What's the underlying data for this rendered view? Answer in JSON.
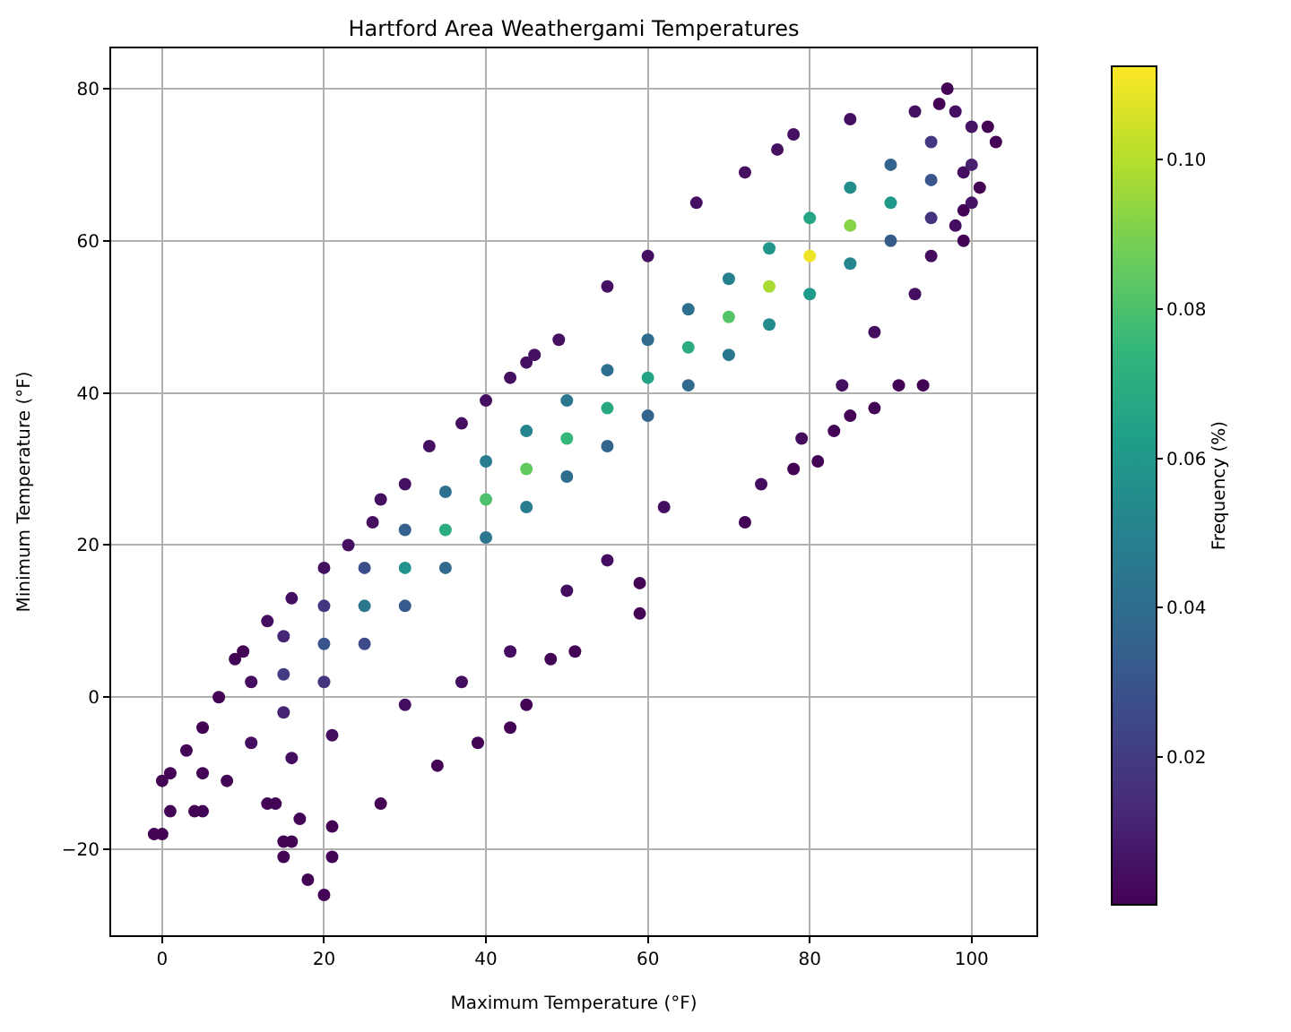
{
  "chart_data": {
    "type": "scatter",
    "title": "Hartford Area Weathergami Temperatures",
    "xlabel": "Maximum Temperature (°F)",
    "ylabel": "Minimum Temperature (°F)",
    "clabel": "Frequency (%)",
    "x": [
      -1,
      0,
      0,
      1,
      1,
      4,
      5,
      3,
      5,
      5,
      7,
      9,
      10,
      8,
      13,
      14,
      15,
      16,
      15,
      17,
      18,
      20,
      21,
      21,
      27,
      34,
      39,
      43,
      45,
      48,
      51,
      59,
      59,
      72,
      78,
      81,
      83,
      85,
      88,
      91,
      94,
      99,
      99,
      101,
      102,
      103,
      97,
      96,
      99,
      98,
      95,
      93,
      88,
      84,
      79,
      74,
      62,
      55,
      50,
      43,
      37,
      30,
      21,
      16,
      11,
      11,
      13,
      16,
      20,
      23,
      26,
      27,
      30,
      33,
      37,
      40,
      43,
      45,
      46,
      49,
      55,
      60,
      66,
      72,
      76,
      78,
      85,
      93,
      98,
      15,
      15,
      15,
      20,
      20,
      20,
      25,
      25,
      25,
      30,
      30,
      30,
      35,
      35,
      35,
      40,
      40,
      40,
      45,
      45,
      45,
      50,
      50,
      50,
      55,
      55,
      55,
      60,
      60,
      60,
      65,
      65,
      65,
      70,
      70,
      70,
      75,
      75,
      75,
      80,
      80,
      80,
      85,
      85,
      85,
      90,
      90,
      90,
      95,
      95,
      95,
      100,
      100,
      100
    ],
    "values": [
      -18,
      -18,
      -11,
      -10,
      -15,
      -15,
      -15,
      -7,
      -4,
      -10,
      0,
      5,
      6,
      -11,
      -14,
      -14,
      -19,
      -19,
      -21,
      -16,
      -24,
      -26,
      -17,
      -21,
      -14,
      -9,
      -6,
      -4,
      -1,
      5,
      6,
      11,
      15,
      23,
      30,
      31,
      35,
      37,
      38,
      41,
      41,
      60,
      64,
      67,
      75,
      73,
      80,
      78,
      69,
      62,
      58,
      53,
      48,
      41,
      34,
      28,
      25,
      18,
      14,
      6,
      2,
      -1,
      -5,
      -8,
      -6,
      2,
      10,
      13,
      17,
      20,
      23,
      26,
      28,
      33,
      36,
      39,
      42,
      44,
      45,
      47,
      54,
      58,
      65,
      69,
      72,
      74,
      76,
      77,
      77,
      3,
      8,
      -2,
      7,
      12,
      2,
      12,
      17,
      7,
      17,
      22,
      12,
      22,
      27,
      17,
      26,
      31,
      21,
      30,
      35,
      25,
      34,
      39,
      29,
      38,
      43,
      33,
      42,
      47,
      37,
      46,
      51,
      41,
      50,
      55,
      45,
      54,
      59,
      49,
      58,
      63,
      53,
      62,
      67,
      57,
      65,
      70,
      60,
      68,
      73,
      63,
      70,
      75,
      65
    ],
    "cvalues": [
      0.001,
      0.001,
      0.001,
      0.001,
      0.001,
      0.001,
      0.001,
      0.001,
      0.001,
      0.001,
      0.001,
      0.001,
      0.001,
      0.001,
      0.001,
      0.001,
      0.001,
      0.001,
      0.001,
      0.001,
      0.001,
      0.001,
      0.001,
      0.001,
      0.001,
      0.001,
      0.001,
      0.001,
      0.001,
      0.001,
      0.001,
      0.001,
      0.001,
      0.001,
      0.001,
      0.001,
      0.001,
      0.001,
      0.001,
      0.001,
      0.001,
      0.001,
      0.001,
      0.001,
      0.001,
      0.001,
      0.001,
      0.001,
      0.004,
      0.004,
      0.004,
      0.004,
      0.004,
      0.004,
      0.004,
      0.004,
      0.004,
      0.004,
      0.004,
      0.004,
      0.004,
      0.004,
      0.004,
      0.004,
      0.004,
      0.004,
      0.004,
      0.004,
      0.005,
      0.005,
      0.005,
      0.005,
      0.005,
      0.005,
      0.005,
      0.005,
      0.005,
      0.005,
      0.005,
      0.005,
      0.005,
      0.005,
      0.005,
      0.005,
      0.005,
      0.005,
      0.005,
      0.005,
      0.005,
      0.02,
      0.012,
      0.011,
      0.03,
      0.018,
      0.017,
      0.045,
      0.027,
      0.025,
      0.058,
      0.035,
      0.032,
      0.07,
      0.042,
      0.039,
      0.08,
      0.048,
      0.044,
      0.085,
      0.051,
      0.047,
      0.075,
      0.045,
      0.041,
      0.068,
      0.041,
      0.037,
      0.065,
      0.039,
      0.036,
      0.07,
      0.042,
      0.039,
      0.082,
      0.049,
      0.045,
      0.098,
      0.059,
      0.054,
      0.11,
      0.066,
      0.061,
      0.092,
      0.055,
      0.051,
      0.06,
      0.036,
      0.033,
      0.03,
      0.018,
      0.017,
      0.01,
      0.006,
      0.006
    ],
    "marker": "circle",
    "grid": true,
    "xlim": [
      -6.3,
      108
    ],
    "xticks": [
      0,
      20,
      40,
      60,
      80,
      100
    ],
    "ylim": [
      -31.3,
      85.3
    ],
    "yticks": [
      {
        "value": -20,
        "label": "−20"
      },
      0,
      20,
      40,
      60,
      80
    ],
    "clim": [
      0.0002,
      0.1125
    ],
    "cticks": [
      0.02,
      0.04,
      0.06,
      0.08,
      {
        "value": 0.1,
        "label": "0.10"
      }
    ]
  }
}
